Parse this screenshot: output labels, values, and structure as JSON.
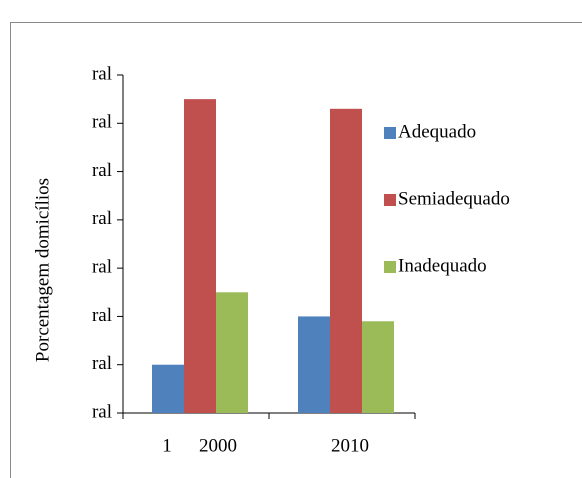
{
  "chart_data": {
    "type": "bar",
    "y_label": "Porcentagem domicílios",
    "annotation": "1",
    "categories": [
      "2000",
      "2010"
    ],
    "series": [
      {
        "name": "Adequado",
        "color": "#4f81bd",
        "values": [
          1,
          2
        ]
      },
      {
        "name": "Semiadequado",
        "color": "#c0504d",
        "values": [
          6.5,
          6.3
        ]
      },
      {
        "name": "Inadequado",
        "color": "#9bbb59",
        "values": [
          2.5,
          1.9
        ]
      }
    ],
    "ylim": [
      0,
      7
    ],
    "yticks": [
      {
        "value": 0,
        "label": "ral"
      },
      {
        "value": 1,
        "label": "ral"
      },
      {
        "value": 2,
        "label": "ral"
      },
      {
        "value": 3,
        "label": "ral"
      },
      {
        "value": 4,
        "label": "ral"
      },
      {
        "value": 5,
        "label": "ral"
      },
      {
        "value": 6,
        "label": "ral"
      },
      {
        "value": 7,
        "label": "ral"
      }
    ],
    "legend": "right",
    "grid": false
  }
}
